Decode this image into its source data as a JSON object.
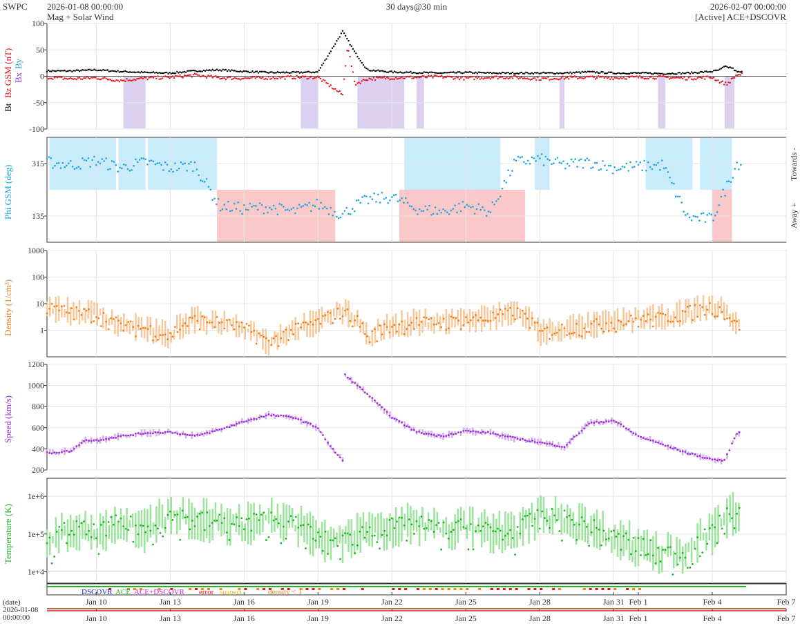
{
  "header": {
    "source": "SWPC",
    "start_time": "2026-01-08 00:00:00",
    "subtitle": "Mag + Solar Wind",
    "resolution": "30 days@30 min",
    "end_time": "2026-02-07 00:00:00",
    "mode": "[Active] ACE+DSCOVR"
  },
  "colors": {
    "bt": "#000000",
    "bz": "#e8141c",
    "bx": "#9b30d9",
    "by": "#1fa6e0",
    "phi": "#1fa6e0",
    "towards_band": "#c9ebfa",
    "away_band": "#fac8c8",
    "density": "#f08020",
    "density_fill": "#f7c89a",
    "speed": "#9b30d9",
    "speed_fill": "#d6aef0",
    "temperature": "#21b421",
    "temperature_fill": "#9be49b",
    "bz_shade": "#dcd0f0",
    "dscovr": "#1a1acc",
    "ace": "#21b421",
    "ace_dscovr": "#e020c8",
    "error": "#e8141c",
    "suspect": "#f0c020",
    "density_low": "#f08020"
  },
  "chart_data": [
    {
      "type": "scatter",
      "id": "mag",
      "ylabel_parts": [
        "Bt",
        "Bz GSM (nT)"
      ],
      "legend_stacked": [
        "Bx",
        "By"
      ],
      "ylim": [
        -100,
        100
      ],
      "yticks": [
        "100",
        "50",
        "0",
        "-50",
        "-100"
      ],
      "ytick_values": [
        100,
        50,
        0,
        -50,
        -100
      ],
      "x_unit": "days since 2026-01-08",
      "series": [
        {
          "name": "Bt",
          "x": [
            0,
            1,
            2,
            3,
            4,
            5,
            6,
            7,
            8,
            9,
            10,
            11,
            12,
            12.5,
            13,
            14,
            15,
            16,
            17,
            18,
            19,
            20,
            21,
            22,
            23,
            24,
            25,
            26,
            27,
            27.3,
            27.5,
            27.8,
            28
          ],
          "values": [
            10,
            10,
            12,
            9,
            7,
            6,
            10,
            12,
            9,
            7,
            7,
            8,
            85,
            45,
            12,
            8,
            7,
            6,
            7,
            6,
            6,
            6,
            6,
            8,
            6,
            6,
            5,
            6,
            9,
            12,
            18,
            16,
            8
          ]
        },
        {
          "name": "Bz",
          "x": [
            0,
            1,
            2,
            3,
            4,
            5,
            6,
            7,
            8,
            9,
            10,
            11,
            12,
            12.2,
            12.5,
            13,
            14,
            15,
            16,
            17,
            18,
            19,
            20,
            21,
            22,
            23,
            24,
            25,
            26,
            27,
            27.3,
            27.6,
            28
          ],
          "values": [
            -2,
            -5,
            -3,
            -8,
            -4,
            -2,
            2,
            -3,
            -4,
            -3,
            -2,
            -2,
            -35,
            60,
            -15,
            -5,
            -3,
            -2,
            -1,
            -4,
            -2,
            -2,
            -5,
            -3,
            -2,
            -3,
            -2,
            -2,
            -4,
            -2,
            -10,
            -15,
            3
          ]
        }
      ]
    },
    {
      "type": "scatter",
      "id": "phi",
      "ylabel": "Phi GSM (deg)",
      "right_labels": [
        "Towards -",
        "Away +"
      ],
      "ylim": [
        45,
        405
      ],
      "yticks": [
        "315",
        "135"
      ],
      "ytick_values": [
        315,
        135
      ],
      "x": [
        0,
        1,
        2,
        3,
        4,
        5,
        6,
        7,
        8,
        9,
        10,
        11,
        12,
        12.5,
        13,
        14,
        15,
        16,
        17,
        18,
        19,
        20,
        21,
        22,
        23,
        24,
        25,
        26,
        27,
        28
      ],
      "values": [
        320,
        310,
        325,
        300,
        320,
        300,
        310,
        170,
        160,
        165,
        150,
        175,
        140,
        170,
        190,
        200,
        160,
        150,
        170,
        150,
        320,
        330,
        310,
        320,
        300,
        305,
        310,
        130,
        125,
        315
      ],
      "towards_intervals": [
        [
          0.1,
          2.8
        ],
        [
          2.9,
          4.0
        ],
        [
          4.1,
          6.9
        ],
        [
          14.5,
          18.4
        ],
        [
          19.8,
          20.4
        ],
        [
          24.3,
          26.2
        ],
        [
          26.5,
          27.8
        ]
      ],
      "away_intervals": [
        [
          6.9,
          11.7
        ],
        [
          14.3,
          19.4
        ],
        [
          27.0,
          27.8
        ]
      ]
    },
    {
      "type": "scatter",
      "id": "density",
      "ylabel": "Density (1/cm³)",
      "scale": "log",
      "ylim": [
        0.1,
        1000
      ],
      "yticks": [
        "1000",
        "100",
        "10",
        "1"
      ],
      "ytick_values": [
        1000,
        100,
        10,
        1
      ],
      "x": [
        0,
        1,
        2,
        3,
        4,
        5,
        6,
        7,
        8,
        9,
        10,
        11,
        12,
        13,
        14,
        15,
        16,
        17,
        18,
        19,
        20,
        21,
        22,
        23,
        24,
        25,
        26,
        27,
        28
      ],
      "values": [
        7,
        5,
        4,
        1.5,
        1.2,
        0.6,
        2.5,
        2.0,
        1.2,
        0.3,
        1.0,
        2.0,
        5,
        0.5,
        1.5,
        2.0,
        2.0,
        2.5,
        3,
        5,
        0.8,
        1.2,
        1.5,
        2,
        2.5,
        3,
        5,
        8,
        1.5
      ]
    },
    {
      "type": "scatter",
      "id": "speed",
      "ylabel": "Speed (km/s)",
      "ylim": [
        200,
        1200
      ],
      "yticks": [
        "1200",
        "1000",
        "800",
        "600",
        "400",
        "200"
      ],
      "ytick_values": [
        1200,
        1000,
        800,
        600,
        400,
        200
      ],
      "x": [
        0,
        1,
        1.5,
        2,
        3,
        4,
        5,
        6,
        7,
        8,
        9,
        10,
        11,
        11.5,
        12,
        12.1,
        13,
        14,
        15,
        16,
        17,
        18,
        19,
        20,
        21,
        22,
        23,
        24,
        25,
        26,
        27,
        27.5,
        28
      ],
      "values": [
        360,
        380,
        480,
        480,
        520,
        550,
        560,
        520,
        580,
        660,
        720,
        700,
        600,
        420,
        290,
        1100,
        920,
        700,
        560,
        520,
        570,
        550,
        500,
        460,
        420,
        640,
        670,
        520,
        440,
        360,
        300,
        290,
        550
      ]
    },
    {
      "type": "scatter",
      "id": "temperature",
      "ylabel": "Temperature (K)",
      "scale": "log",
      "ylim": [
        5000,
        3000000
      ],
      "yticks": [
        "1e+6",
        "1e+5",
        "1e+4"
      ],
      "ytick_values": [
        1000000,
        100000,
        10000
      ],
      "x": [
        0,
        1,
        2,
        3,
        4,
        5,
        6,
        7,
        8,
        9,
        10,
        11,
        12,
        13,
        14,
        15,
        16,
        17,
        18,
        19,
        20,
        21,
        22,
        23,
        24,
        25,
        26,
        27,
        28
      ],
      "values": [
        40000,
        150000,
        100000,
        200000,
        120000,
        300000,
        250000,
        200000,
        180000,
        250000,
        180000,
        70000,
        60000,
        120000,
        150000,
        180000,
        120000,
        150000,
        120000,
        100000,
        280000,
        250000,
        150000,
        80000,
        50000,
        30000,
        30000,
        100000,
        400000
      ]
    }
  ],
  "status_legend": {
    "dscovr": "DSCOVR",
    "ace": "ACE",
    "ace_dscovr": "ACE+DSCOVR",
    "error": "error",
    "suspect": "suspect",
    "density_low": "density < 1"
  },
  "x_axis": {
    "date_label": "(date)",
    "start_date": "2026-01-08",
    "start_time": "00:00:00",
    "ticks": [
      "Jan 10",
      "Jan 13",
      "Jan 16",
      "Jan 19",
      "Jan 22",
      "Jan 25",
      "Jan 28",
      "Jan 31",
      "Feb 1",
      "Feb 4",
      "Feb 7"
    ],
    "tick_days": [
      2,
      5,
      8,
      11,
      14,
      17,
      20,
      23,
      24,
      27,
      30
    ]
  }
}
